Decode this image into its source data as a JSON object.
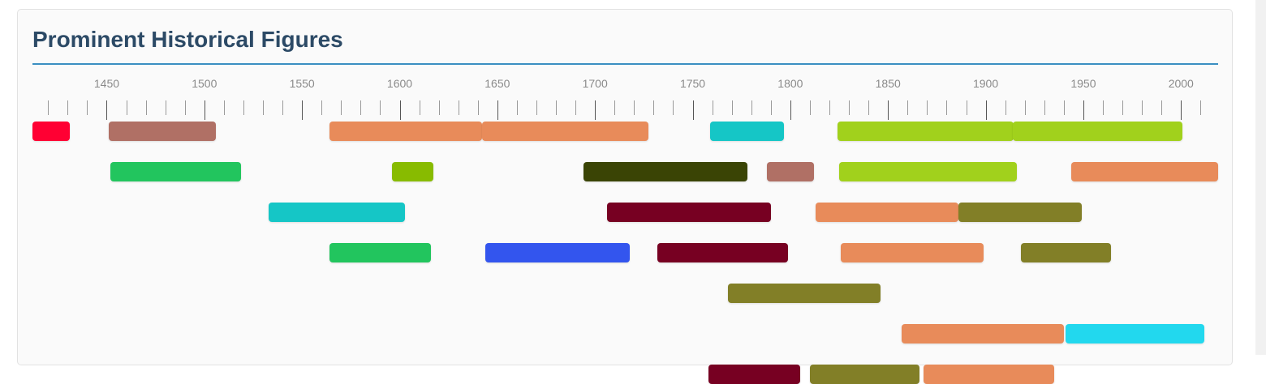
{
  "title": "Prominent Historical Figures",
  "chart_data": {
    "type": "timeline",
    "title": "Prominent Historical Figures",
    "x_axis": {
      "min": 1412,
      "max": 2019,
      "ticks": [
        1450,
        1500,
        1550,
        1600,
        1650,
        1700,
        1750,
        1800,
        1850,
        1900,
        1950,
        2000
      ],
      "minor_step": 10
    },
    "rows": [
      [
        {
          "start": 1412,
          "end": 1431,
          "color": "#ff0033"
        },
        {
          "start": 1451,
          "end": 1506,
          "color": "#b07065"
        },
        {
          "start": 1564,
          "end": 1642,
          "color": "#e88b5a"
        },
        {
          "start": 1642,
          "end": 1727,
          "color": "#e88b5a"
        },
        {
          "start": 1759,
          "end": 1797,
          "color": "#15c6c6"
        },
        {
          "start": 1824,
          "end": 1914,
          "color": "#a1d11c"
        },
        {
          "start": 1914,
          "end": 2001,
          "color": "#a1d11c"
        }
      ],
      [
        {
          "start": 1452,
          "end": 1519,
          "color": "#22c55e"
        },
        {
          "start": 1596,
          "end": 1617,
          "color": "#88bb00"
        },
        {
          "start": 1694,
          "end": 1778,
          "color": "#3a4405"
        },
        {
          "start": 1788,
          "end": 1812,
          "color": "#b07065"
        },
        {
          "start": 1825,
          "end": 1916,
          "color": "#a1d11c"
        },
        {
          "start": 1944,
          "end": 2019,
          "color": "#e88b5a"
        }
      ],
      [
        {
          "start": 1533,
          "end": 1603,
          "color": "#15c6c6"
        },
        {
          "start": 1706,
          "end": 1790,
          "color": "#770022"
        },
        {
          "start": 1813,
          "end": 1886,
          "color": "#e88b5a"
        },
        {
          "start": 1886,
          "end": 1949,
          "color": "#827f27"
        }
      ],
      [
        {
          "start": 1564,
          "end": 1616,
          "color": "#22c55e"
        },
        {
          "start": 1644,
          "end": 1718,
          "color": "#3355ee"
        },
        {
          "start": 1732,
          "end": 1799,
          "color": "#770022"
        },
        {
          "start": 1826,
          "end": 1899,
          "color": "#e88b5a"
        },
        {
          "start": 1918,
          "end": 1964,
          "color": "#827f27"
        }
      ],
      [
        {
          "start": 1768,
          "end": 1846,
          "color": "#827f27"
        }
      ]
    ],
    "extra_rows": [
      [
        {
          "start": 1857,
          "end": 1940,
          "color": "#e88b5a"
        },
        {
          "start": 1941,
          "end": 2012,
          "color": "#22d8ee"
        }
      ],
      [
        {
          "start": 1758,
          "end": 1805,
          "color": "#770022"
        },
        {
          "start": 1810,
          "end": 1866,
          "color": "#827f27"
        },
        {
          "start": 1868,
          "end": 1935,
          "color": "#e88b5a"
        }
      ]
    ]
  }
}
